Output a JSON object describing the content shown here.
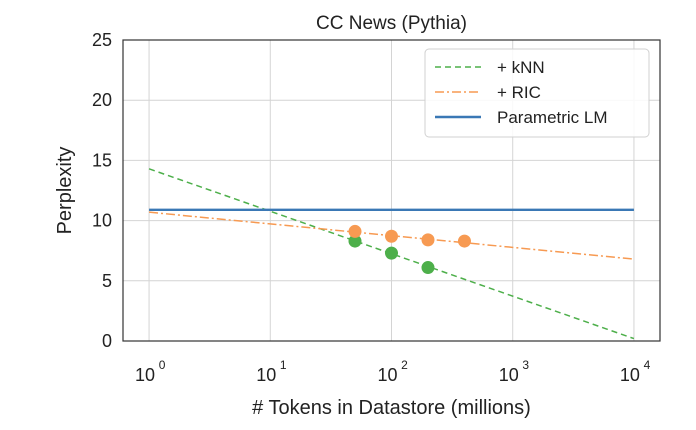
{
  "chart_data": {
    "type": "line",
    "title": "CC News (Pythia)",
    "xlabel": "# Tokens in Datastore (millions)",
    "ylabel": "Perplexity",
    "xscale": "log",
    "xlim": [
      1,
      10000
    ],
    "ylim": [
      0,
      25
    ],
    "xticks": [
      {
        "value": 1,
        "base": "10",
        "exp": "0"
      },
      {
        "value": 10,
        "base": "10",
        "exp": "1"
      },
      {
        "value": 100,
        "base": "10",
        "exp": "2"
      },
      {
        "value": 1000,
        "base": "10",
        "exp": "3"
      },
      {
        "value": 10000,
        "base": "10",
        "exp": "4"
      }
    ],
    "yticks": [
      {
        "value": 0,
        "label": "0"
      },
      {
        "value": 5,
        "label": "5"
      },
      {
        "value": 10,
        "label": "10"
      },
      {
        "value": 15,
        "label": "15"
      },
      {
        "value": 20,
        "label": "20"
      },
      {
        "value": 25,
        "label": "25"
      }
    ],
    "grid": true,
    "legend_position": "top-right",
    "series": [
      {
        "name": "+ kNN",
        "color": "#4daf4a",
        "line_style": "dashed",
        "fit_line": {
          "x": [
            1,
            10000
          ],
          "y": [
            14.3,
            0.2
          ]
        },
        "points": {
          "x": [
            50,
            100,
            200
          ],
          "y": [
            8.3,
            7.3,
            6.1
          ]
        }
      },
      {
        "name": "+ RIC",
        "color": "#f79a52",
        "line_style": "dashdot",
        "fit_line": {
          "x": [
            1,
            10000
          ],
          "y": [
            10.7,
            6.8
          ]
        },
        "points": {
          "x": [
            50,
            100,
            200,
            400
          ],
          "y": [
            9.1,
            8.7,
            8.4,
            8.3
          ]
        }
      },
      {
        "name": "Parametric LM",
        "color": "#3a78b5",
        "line_style": "solid",
        "fit_line": {
          "x": [
            1,
            10000
          ],
          "y": [
            10.9,
            10.9
          ]
        },
        "points": null
      }
    ]
  }
}
